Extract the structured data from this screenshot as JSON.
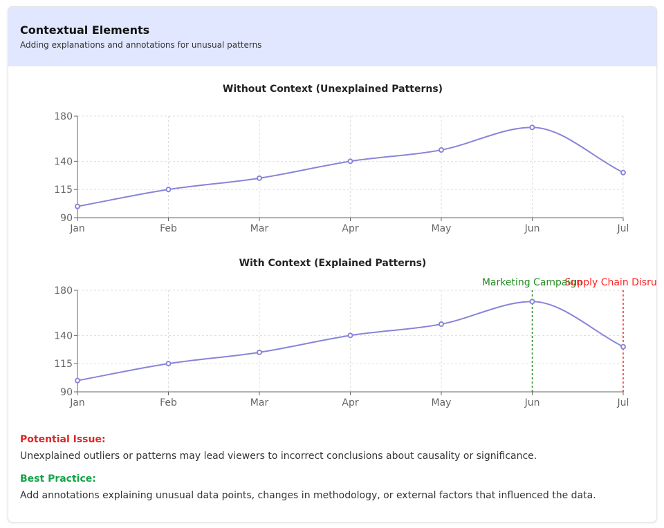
{
  "header": {
    "title": "Contextual Elements",
    "subtitle": "Adding explanations and annotations for unusual patterns"
  },
  "chart_data": [
    {
      "type": "line",
      "title": "Without Context (Unexplained Patterns)",
      "categories": [
        "Jan",
        "Feb",
        "Mar",
        "Apr",
        "May",
        "Jun",
        "Jul"
      ],
      "values": [
        100,
        115,
        125,
        140,
        150,
        170,
        130
      ],
      "ylim": [
        90,
        180
      ],
      "yticks": [
        90,
        115,
        140,
        180
      ],
      "grid": true,
      "color": "#8884d8",
      "annotations": []
    },
    {
      "type": "line",
      "title": "With Context (Explained Patterns)",
      "categories": [
        "Jan",
        "Feb",
        "Mar",
        "Apr",
        "May",
        "Jun",
        "Jul"
      ],
      "values": [
        100,
        115,
        125,
        140,
        150,
        170,
        130
      ],
      "ylim": [
        90,
        180
      ],
      "yticks": [
        90,
        115,
        140,
        180
      ],
      "grid": true,
      "color": "#8884d8",
      "annotations": [
        {
          "x": "Jun",
          "label": "Marketing Campaign",
          "color": "#228b22"
        },
        {
          "x": "Jul",
          "label": "Supply Chain Disruption",
          "color": "#ff2222"
        }
      ]
    }
  ],
  "notes": {
    "issue_heading": "Potential Issue:",
    "issue_text": "Unexplained outliers or patterns may lead viewers to incorrect conclusions about causality or significance.",
    "practice_heading": "Best Practice:",
    "practice_text": "Add annotations explaining unusual data points, changes in methodology, or external factors that influenced the data."
  }
}
